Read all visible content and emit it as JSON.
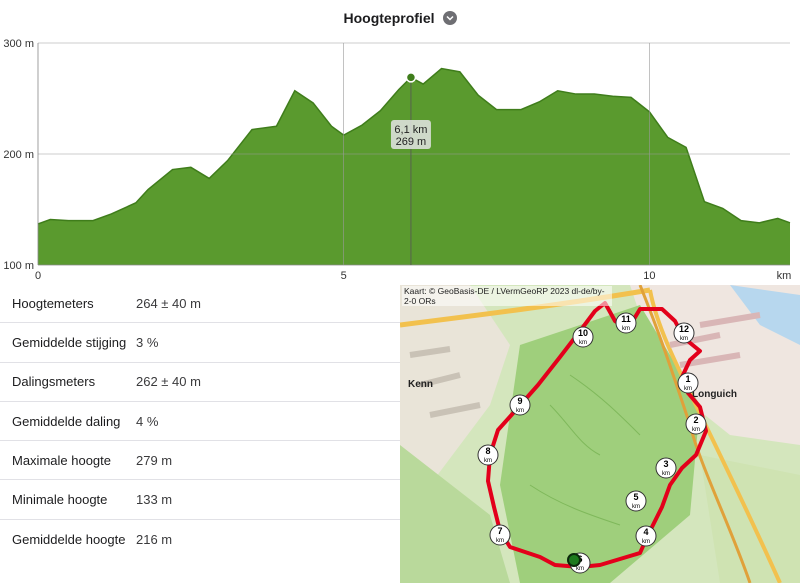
{
  "header": {
    "title": "Hoogteprofiel",
    "toggle_icon": "chevron-down-icon"
  },
  "chart_data": {
    "type": "area",
    "title": "Hoogteprofiel",
    "x_unit": "km",
    "y_unit": "m",
    "xlim": [
      0,
      12.3
    ],
    "ylim": [
      100,
      300
    ],
    "x_ticks": [
      "0",
      "5",
      "10",
      "km"
    ],
    "y_ticks": [
      "300 m",
      "200 m",
      "100 m"
    ],
    "fill_color": "#5a9a2e",
    "line_color": "#3f7d1b",
    "grid": true,
    "series": [
      {
        "x": [
          0,
          0.2,
          0.5,
          0.9,
          1.2,
          1.6,
          1.8,
          2.2,
          2.5,
          2.8,
          3.1,
          3.5,
          3.9,
          4.2,
          4.5,
          4.8,
          5.0,
          5.3,
          5.6,
          5.9,
          6.1,
          6.3,
          6.6,
          6.9,
          7.2,
          7.5,
          7.9,
          8.2,
          8.5,
          8.8,
          9.1,
          9.4,
          9.7,
          10.0,
          10.3,
          10.6,
          10.9,
          11.2,
          11.5,
          11.8,
          12.1,
          12.3
        ],
        "y": [
          137,
          141,
          140,
          140,
          146,
          156,
          168,
          186,
          188,
          178,
          194,
          222,
          225,
          257,
          246,
          225,
          217,
          226,
          239,
          258,
          269,
          263,
          277,
          274,
          253,
          240,
          240,
          247,
          257,
          254,
          254,
          252,
          251,
          238,
          215,
          206,
          157,
          151,
          140,
          138,
          142,
          138
        ]
      }
    ],
    "cursor": {
      "x": 6.1,
      "y": 269,
      "label_distance": "6,1 km",
      "label_elevation": "269 m"
    }
  },
  "stats": [
    {
      "label": "Hoogtemeters",
      "value": "264 ± 40 m"
    },
    {
      "label": "Gemiddelde stijging",
      "value": "3 %"
    },
    {
      "label": "Dalingsmeters",
      "value": "262 ± 40 m"
    },
    {
      "label": "Gemiddelde daling",
      "value": "4 %"
    },
    {
      "label": "Maximale hoogte",
      "value": "279 m"
    },
    {
      "label": "Minimale hoogte",
      "value": "133 m"
    },
    {
      "label": "Gemiddelde hoogte",
      "value": "216 m"
    }
  ],
  "map": {
    "attribution": "Kaart: © GeoBasis-DE / LVermGeoRP 2023 dl-de/by-2-0  ORs",
    "places": {
      "kenn": "Kenn",
      "longuich": "Longuich"
    },
    "route_color": "#e3001b",
    "km_markers": [
      {
        "num": "1",
        "unit": "km"
      },
      {
        "num": "2",
        "unit": "km"
      },
      {
        "num": "3",
        "unit": "km"
      },
      {
        "num": "4",
        "unit": "km"
      },
      {
        "num": "5",
        "unit": "km"
      },
      {
        "num": "6",
        "unit": "km"
      },
      {
        "num": "7",
        "unit": "km"
      },
      {
        "num": "8",
        "unit": "km"
      },
      {
        "num": "9",
        "unit": "km"
      },
      {
        "num": "10",
        "unit": "km"
      },
      {
        "num": "11",
        "unit": "km"
      },
      {
        "num": "12",
        "unit": "km"
      }
    ]
  }
}
